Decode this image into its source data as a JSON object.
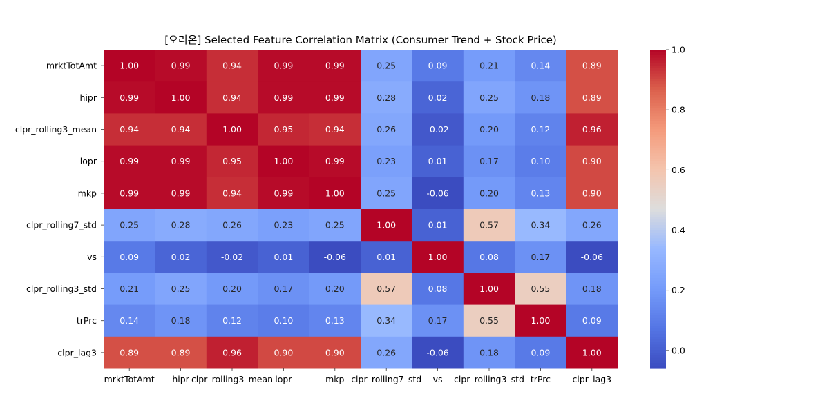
{
  "chart_data": {
    "type": "heatmap",
    "title": "[오리온] Selected Feature Correlation Matrix (Consumer Trend + Stock Price)",
    "x_labels": [
      "mrktTotAmt",
      "hipr",
      "clpr_rolling3_mean",
      "lopr",
      "mkp",
      "clpr_rolling7_std",
      "vs",
      "clpr_rolling3_std",
      "trPrc",
      "clpr_lag3"
    ],
    "y_labels": [
      "mrktTotAmt",
      "hipr",
      "clpr_rolling3_mean",
      "lopr",
      "mkp",
      "clpr_rolling7_std",
      "vs",
      "clpr_rolling3_std",
      "trPrc",
      "clpr_lag3"
    ],
    "values": [
      [
        1.0,
        0.99,
        0.94,
        0.99,
        0.99,
        0.25,
        0.09,
        0.21,
        0.14,
        0.89
      ],
      [
        0.99,
        1.0,
        0.94,
        0.99,
        0.99,
        0.28,
        0.02,
        0.25,
        0.18,
        0.89
      ],
      [
        0.94,
        0.94,
        1.0,
        0.95,
        0.94,
        0.26,
        -0.02,
        0.2,
        0.12,
        0.96
      ],
      [
        0.99,
        0.99,
        0.95,
        1.0,
        0.99,
        0.23,
        0.01,
        0.17,
        0.1,
        0.9
      ],
      [
        0.99,
        0.99,
        0.94,
        0.99,
        1.0,
        0.25,
        -0.06,
        0.2,
        0.13,
        0.9
      ],
      [
        0.25,
        0.28,
        0.26,
        0.23,
        0.25,
        1.0,
        0.01,
        0.57,
        0.34,
        0.26
      ],
      [
        0.09,
        0.02,
        -0.02,
        0.01,
        -0.06,
        0.01,
        1.0,
        0.08,
        0.17,
        -0.06
      ],
      [
        0.21,
        0.25,
        0.2,
        0.17,
        0.2,
        0.57,
        0.08,
        1.0,
        0.55,
        0.18
      ],
      [
        0.14,
        0.18,
        0.12,
        0.1,
        0.13,
        0.34,
        0.17,
        0.55,
        1.0,
        0.09
      ],
      [
        0.89,
        0.89,
        0.96,
        0.9,
        0.9,
        0.26,
        -0.06,
        0.18,
        0.09,
        1.0
      ]
    ],
    "colormap": "coolwarm",
    "vmin": -0.06,
    "vmax": 1.0,
    "colorbar_ticks": [
      "0.0",
      "0.2",
      "0.4",
      "0.6",
      "0.8",
      "1.0"
    ],
    "annotation_format": "0.00"
  }
}
